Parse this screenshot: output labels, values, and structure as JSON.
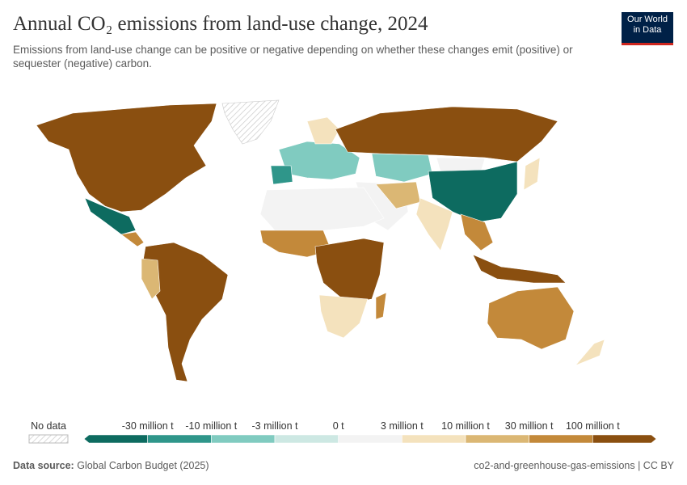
{
  "header": {
    "title": "Annual CO₂ emissions from land-use change, 2024",
    "subtitle": "Emissions from land-use change can be positive or negative depending on whether these changes emit (positive) or sequester (negative) carbon."
  },
  "logo": {
    "line1": "Our World",
    "line2": "in Data"
  },
  "legend": {
    "no_data": "No data",
    "ticks": [
      "-30 million t",
      "-10 million t",
      "-3 million t",
      "0 t",
      "3 million t",
      "10 million t",
      "30 million t",
      "100 million t"
    ],
    "colors": [
      "#0d6b60",
      "#2f968a",
      "#80cbc0",
      "#cde8e3",
      "#f3f3f3",
      "#f4e2bd",
      "#dbb774",
      "#c3893a",
      "#8a4f10"
    ]
  },
  "footer": {
    "source_label": "Data source:",
    "source": "Global Carbon Budget (2025)",
    "slug": "co2-and-greenhouse-gas-emissions | CC BY"
  }
}
